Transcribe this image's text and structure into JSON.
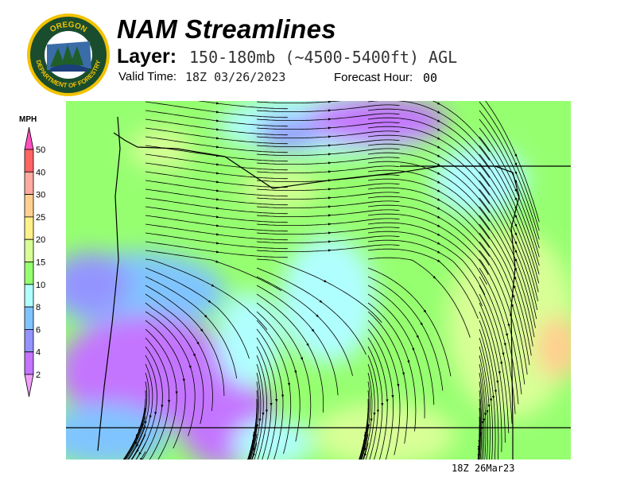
{
  "header": {
    "title": "NAM Streamlines",
    "layer_label": "Layer:",
    "layer_value": "150-180mb (~4500-5400ft) AGL",
    "valid_label": "Valid Time:",
    "valid_value": "18Z 03/26/2023",
    "forecast_label": "Forecast Hour:",
    "forecast_value": "00"
  },
  "logo": {
    "top_text": "OREGON",
    "bottom_text": "DEPARTMENT OF FORESTRY"
  },
  "legend": {
    "units": "MPH",
    "ticks": [
      "50",
      "40",
      "30",
      "25",
      "20",
      "15",
      "10",
      "8",
      "6",
      "4",
      "2"
    ],
    "colors": [
      "#ff50c0",
      "#ff6464",
      "#ffaaa0",
      "#ffd090",
      "#fff08a",
      "#d8ff96",
      "#96ff70",
      "#b0ffff",
      "#80c4ff",
      "#9494ff",
      "#c474ff",
      "#f0a0f8"
    ]
  },
  "map": {
    "layer": "wind streamlines",
    "region": "Oregon"
  },
  "footer": {
    "timestamp": "18Z 26Mar23"
  }
}
